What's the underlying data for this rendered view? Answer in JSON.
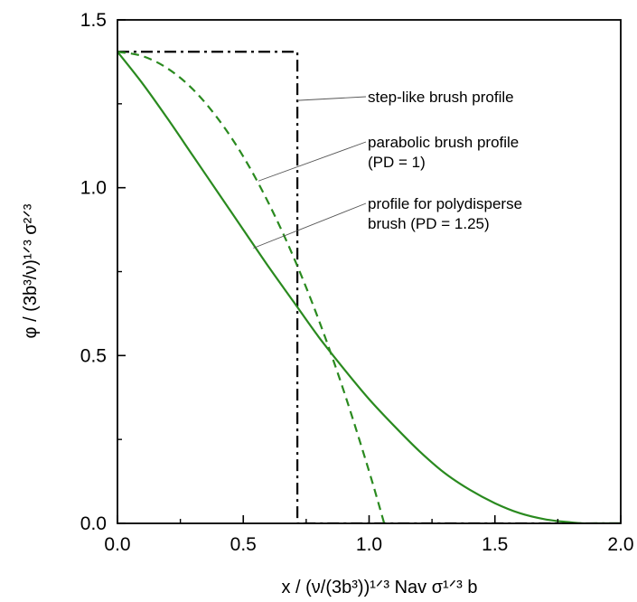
{
  "chart_data": {
    "type": "line",
    "xlabel": "x / (ν/(3b³))¹ᐟ³ Nav σ¹ᐟ³ b",
    "ylabel": "φ / (3b³/ν)¹ᐟ³ σ²ᐟ³",
    "xlim": [
      0,
      2.0
    ],
    "ylim": [
      0,
      1.5
    ],
    "x_ticks": [
      "0.0",
      "0.5",
      "1.0",
      "1.5",
      "2.0"
    ],
    "y_ticks": [
      "0.0",
      "0.5",
      "1.0",
      "1.5"
    ],
    "grid": false,
    "series": [
      {
        "id": "step",
        "color": "#000000",
        "style": "dash-dot",
        "x": [
          0,
          0.715,
          0.715,
          2.0
        ],
        "y": [
          1.405,
          1.405,
          0,
          0
        ]
      },
      {
        "id": "parabolic",
        "color": "#2a8a1f",
        "style": "dashed",
        "x": [
          0,
          0.1,
          0.2,
          0.3,
          0.4,
          0.5,
          0.6,
          0.7,
          0.8,
          0.9,
          1.0,
          1.06
        ],
        "y": [
          1.405,
          1.392,
          1.355,
          1.293,
          1.205,
          1.093,
          0.955,
          0.793,
          0.606,
          0.393,
          0.155,
          0.0
        ]
      },
      {
        "id": "polydisperse",
        "color": "#2a8a1f",
        "style": "solid",
        "x": [
          0,
          0.1,
          0.2,
          0.3,
          0.4,
          0.5,
          0.6,
          0.7,
          0.8,
          0.9,
          1.0,
          1.1,
          1.2,
          1.3,
          1.4,
          1.5,
          1.6,
          1.7,
          1.8,
          1.85,
          1.9,
          2.0
        ],
        "y": [
          1.405,
          1.31,
          1.205,
          1.095,
          0.985,
          0.875,
          0.765,
          0.66,
          0.555,
          0.46,
          0.37,
          0.29,
          0.215,
          0.15,
          0.1,
          0.06,
          0.03,
          0.012,
          0.003,
          0.0,
          0.0,
          0.0
        ]
      }
    ],
    "annotations": [
      {
        "id": "step",
        "lines": [
          "step-like brush profile"
        ],
        "target": [
          0.715,
          1.26
        ]
      },
      {
        "id": "parabolic",
        "lines": [
          "parabolic brush profile",
          "(PD = 1)"
        ],
        "target": [
          0.56,
          1.02
        ]
      },
      {
        "id": "polydisperse",
        "lines": [
          "profile for polydisperse",
          "brush (PD = 1.25)"
        ],
        "target": [
          0.54,
          0.82
        ]
      }
    ]
  }
}
